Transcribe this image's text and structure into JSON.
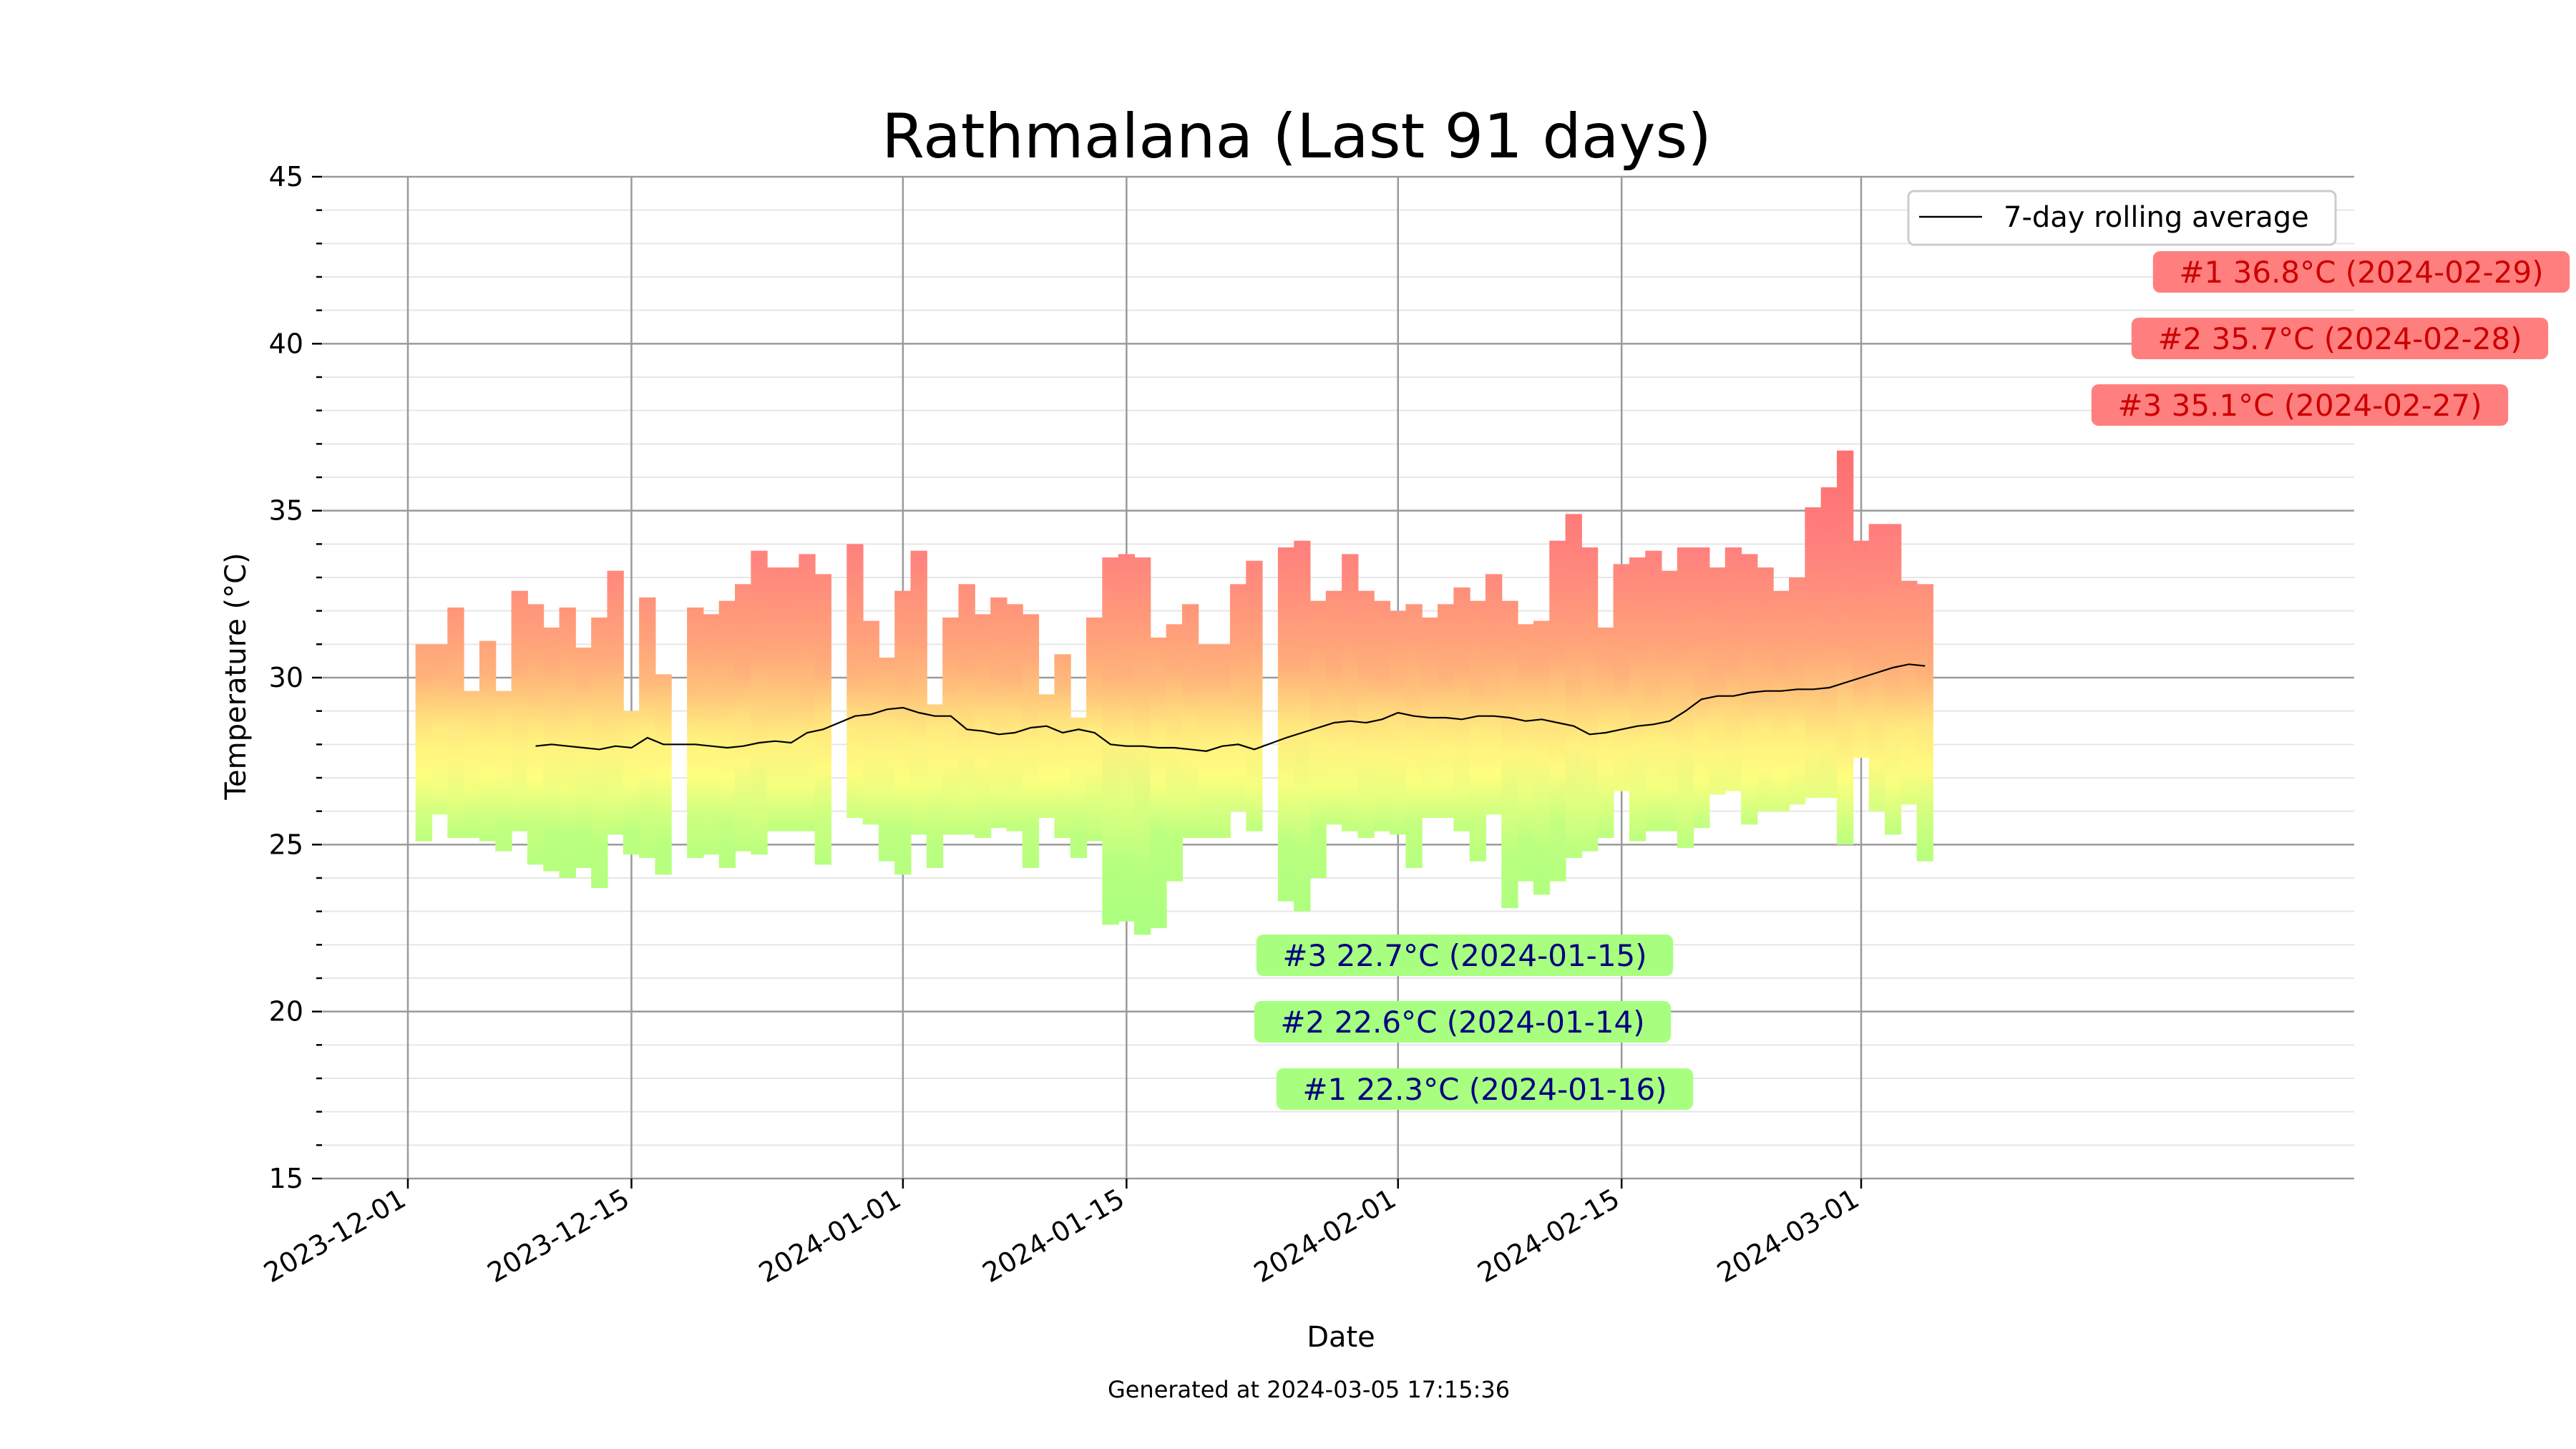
{
  "chart_data": {
    "type": "bar",
    "title": "Rathmalana (Last 91 days)",
    "xlabel": "Date",
    "ylabel": "Temperature (°C)",
    "footer": "Generated at 2024-03-05 17:15:36",
    "ylim": [
      15,
      45
    ],
    "yticks": [
      15,
      20,
      25,
      30,
      35,
      40,
      45
    ],
    "x_range": [
      "2023-12-01",
      "2024-03-08"
    ],
    "x_tick_labels": [
      "2023-12-01",
      "2023-12-15",
      "2024-01-01",
      "2024-01-15",
      "2024-02-01",
      "2024-02-15",
      "2024-03-01"
    ],
    "grid": true,
    "legend": {
      "position": "top-right",
      "label": "7-day rolling average"
    },
    "colors": {
      "hot": "#ff7f7f",
      "warm": "#ffb27a",
      "mild": "#ffff7f",
      "cool": "#a8ff7f",
      "hot_text": "#cc0000",
      "cool_text": "#000080",
      "line": "#000000"
    },
    "daily": [
      {
        "date": "2023-12-02",
        "min": 25.1,
        "max": 31.0
      },
      {
        "date": "2023-12-03",
        "min": 25.9,
        "max": 31.0
      },
      {
        "date": "2023-12-04",
        "min": 25.2,
        "max": 32.1
      },
      {
        "date": "2023-12-05",
        "min": 25.2,
        "max": 29.6
      },
      {
        "date": "2023-12-06",
        "min": 25.1,
        "max": 31.1
      },
      {
        "date": "2023-12-07",
        "min": 24.8,
        "max": 29.6
      },
      {
        "date": "2023-12-08",
        "min": 25.4,
        "max": 32.6
      },
      {
        "date": "2023-12-09",
        "min": 24.4,
        "max": 32.2
      },
      {
        "date": "2023-12-10",
        "min": 24.2,
        "max": 31.5
      },
      {
        "date": "2023-12-11",
        "min": 24.0,
        "max": 32.1
      },
      {
        "date": "2023-12-12",
        "min": 24.3,
        "max": 30.9
      },
      {
        "date": "2023-12-13",
        "min": 23.7,
        "max": 31.8
      },
      {
        "date": "2023-12-14",
        "min": 25.3,
        "max": 33.2
      },
      {
        "date": "2023-12-15",
        "min": 24.7,
        "max": 29.0
      },
      {
        "date": "2023-12-16",
        "min": 24.6,
        "max": 32.4
      },
      {
        "date": "2023-12-17",
        "min": 24.1,
        "max": 30.1
      },
      {
        "date": "2023-12-19",
        "min": 24.6,
        "max": 32.1
      },
      {
        "date": "2023-12-20",
        "min": 24.7,
        "max": 31.9
      },
      {
        "date": "2023-12-21",
        "min": 24.3,
        "max": 32.3
      },
      {
        "date": "2023-12-22",
        "min": 24.8,
        "max": 32.8
      },
      {
        "date": "2023-12-23",
        "min": 24.7,
        "max": 33.8
      },
      {
        "date": "2023-12-24",
        "min": 25.4,
        "max": 33.3
      },
      {
        "date": "2023-12-25",
        "min": 25.4,
        "max": 33.3
      },
      {
        "date": "2023-12-26",
        "min": 25.4,
        "max": 33.7
      },
      {
        "date": "2023-12-27",
        "min": 24.4,
        "max": 33.1
      },
      {
        "date": "2023-12-29",
        "min": 25.8,
        "max": 34.0
      },
      {
        "date": "2023-12-30",
        "min": 25.6,
        "max": 31.7
      },
      {
        "date": "2023-12-31",
        "min": 24.5,
        "max": 30.6
      },
      {
        "date": "2024-01-01",
        "min": 24.1,
        "max": 32.6
      },
      {
        "date": "2024-01-02",
        "min": 25.3,
        "max": 33.8
      },
      {
        "date": "2024-01-03",
        "min": 24.3,
        "max": 29.2
      },
      {
        "date": "2024-01-04",
        "min": 25.3,
        "max": 31.8
      },
      {
        "date": "2024-01-05",
        "min": 25.3,
        "max": 32.8
      },
      {
        "date": "2024-01-06",
        "min": 25.2,
        "max": 31.9
      },
      {
        "date": "2024-01-07",
        "min": 25.5,
        "max": 32.4
      },
      {
        "date": "2024-01-08",
        "min": 25.4,
        "max": 32.2
      },
      {
        "date": "2024-01-09",
        "min": 24.3,
        "max": 31.9
      },
      {
        "date": "2024-01-10",
        "min": 25.8,
        "max": 29.5
      },
      {
        "date": "2024-01-11",
        "min": 25.2,
        "max": 30.7
      },
      {
        "date": "2024-01-12",
        "min": 24.6,
        "max": 28.8
      },
      {
        "date": "2024-01-13",
        "min": 25.1,
        "max": 31.8
      },
      {
        "date": "2024-01-14",
        "min": 22.6,
        "max": 33.6
      },
      {
        "date": "2024-01-15",
        "min": 22.7,
        "max": 33.7
      },
      {
        "date": "2024-01-16",
        "min": 22.3,
        "max": 33.6
      },
      {
        "date": "2024-01-17",
        "min": 22.5,
        "max": 31.2
      },
      {
        "date": "2024-01-18",
        "min": 23.9,
        "max": 31.6
      },
      {
        "date": "2024-01-19",
        "min": 25.2,
        "max": 32.2
      },
      {
        "date": "2024-01-20",
        "min": 25.2,
        "max": 31.0
      },
      {
        "date": "2024-01-21",
        "min": 25.2,
        "max": 31.0
      },
      {
        "date": "2024-01-22",
        "min": 26.0,
        "max": 32.8
      },
      {
        "date": "2024-01-23",
        "min": 25.4,
        "max": 33.5
      },
      {
        "date": "2024-01-25",
        "min": 23.3,
        "max": 33.9
      },
      {
        "date": "2024-01-26",
        "min": 23.0,
        "max": 34.1
      },
      {
        "date": "2024-01-27",
        "min": 24.0,
        "max": 32.3
      },
      {
        "date": "2024-01-28",
        "min": 25.6,
        "max": 32.6
      },
      {
        "date": "2024-01-29",
        "min": 25.4,
        "max": 33.7
      },
      {
        "date": "2024-01-30",
        "min": 25.2,
        "max": 32.6
      },
      {
        "date": "2024-01-31",
        "min": 25.4,
        "max": 32.3
      },
      {
        "date": "2024-02-01",
        "min": 25.3,
        "max": 32.0
      },
      {
        "date": "2024-02-02",
        "min": 24.3,
        "max": 32.2
      },
      {
        "date": "2024-02-03",
        "min": 25.8,
        "max": 31.8
      },
      {
        "date": "2024-02-04",
        "min": 25.8,
        "max": 32.2
      },
      {
        "date": "2024-02-05",
        "min": 25.4,
        "max": 32.7
      },
      {
        "date": "2024-02-06",
        "min": 24.5,
        "max": 32.3
      },
      {
        "date": "2024-02-07",
        "min": 25.9,
        "max": 33.1
      },
      {
        "date": "2024-02-08",
        "min": 23.1,
        "max": 32.3
      },
      {
        "date": "2024-02-09",
        "min": 23.9,
        "max": 31.6
      },
      {
        "date": "2024-02-10",
        "min": 23.5,
        "max": 31.7
      },
      {
        "date": "2024-02-11",
        "min": 23.9,
        "max": 34.1
      },
      {
        "date": "2024-02-12",
        "min": 24.6,
        "max": 34.9
      },
      {
        "date": "2024-02-13",
        "min": 24.8,
        "max": 33.9
      },
      {
        "date": "2024-02-14",
        "min": 25.2,
        "max": 31.5
      },
      {
        "date": "2024-02-15",
        "min": 26.6,
        "max": 33.4
      },
      {
        "date": "2024-02-16",
        "min": 25.1,
        "max": 33.6
      },
      {
        "date": "2024-02-17",
        "min": 25.4,
        "max": 33.8
      },
      {
        "date": "2024-02-18",
        "min": 25.4,
        "max": 33.2
      },
      {
        "date": "2024-02-19",
        "min": 24.9,
        "max": 33.9
      },
      {
        "date": "2024-02-20",
        "min": 25.5,
        "max": 33.9
      },
      {
        "date": "2024-02-21",
        "min": 26.5,
        "max": 33.3
      },
      {
        "date": "2024-02-22",
        "min": 26.6,
        "max": 33.9
      },
      {
        "date": "2024-02-23",
        "min": 25.6,
        "max": 33.7
      },
      {
        "date": "2024-02-24",
        "min": 26.0,
        "max": 33.3
      },
      {
        "date": "2024-02-25",
        "min": 26.0,
        "max": 32.6
      },
      {
        "date": "2024-02-26",
        "min": 26.2,
        "max": 33.0
      },
      {
        "date": "2024-02-27",
        "min": 26.4,
        "max": 35.1
      },
      {
        "date": "2024-02-28",
        "min": 26.4,
        "max": 35.7
      },
      {
        "date": "2024-02-29",
        "min": 25.0,
        "max": 36.8
      },
      {
        "date": "2024-03-01",
        "min": 27.6,
        "max": 34.1
      },
      {
        "date": "2024-03-02",
        "min": 26.0,
        "max": 34.6
      },
      {
        "date": "2024-03-03",
        "min": 25.3,
        "max": 34.6
      },
      {
        "date": "2024-03-04",
        "min": 26.2,
        "max": 32.9
      },
      {
        "date": "2024-03-05",
        "min": 24.5,
        "max": 32.8
      }
    ],
    "rolling_average": {
      "name": "7-day rolling average",
      "dates": [
        "2023-12-09",
        "2023-12-10",
        "2023-12-11",
        "2023-12-12",
        "2023-12-13",
        "2023-12-14",
        "2023-12-15",
        "2023-12-16",
        "2023-12-17",
        "2023-12-19",
        "2023-12-20",
        "2023-12-21",
        "2023-12-22",
        "2023-12-23",
        "2023-12-24",
        "2023-12-25",
        "2023-12-26",
        "2023-12-27",
        "2023-12-29",
        "2023-12-30",
        "2023-12-31",
        "2024-01-01",
        "2024-01-02",
        "2024-01-03",
        "2024-01-04",
        "2024-01-05",
        "2024-01-06",
        "2024-01-07",
        "2024-01-08",
        "2024-01-09",
        "2024-01-10",
        "2024-01-11",
        "2024-01-12",
        "2024-01-13",
        "2024-01-14",
        "2024-01-15",
        "2024-01-16",
        "2024-01-17",
        "2024-01-18",
        "2024-01-19",
        "2024-01-20",
        "2024-01-21",
        "2024-01-22",
        "2024-01-23",
        "2024-01-25",
        "2024-01-26",
        "2024-01-27",
        "2024-01-28",
        "2024-01-29",
        "2024-01-30",
        "2024-01-31",
        "2024-02-01",
        "2024-02-02",
        "2024-02-03",
        "2024-02-04",
        "2024-02-05",
        "2024-02-06",
        "2024-02-07",
        "2024-02-08",
        "2024-02-09",
        "2024-02-10",
        "2024-02-11",
        "2024-02-12",
        "2024-02-13",
        "2024-02-14",
        "2024-02-15",
        "2024-02-16",
        "2024-02-17",
        "2024-02-18",
        "2024-02-19",
        "2024-02-20",
        "2024-02-21",
        "2024-02-22",
        "2024-02-23",
        "2024-02-24",
        "2024-02-25",
        "2024-02-26",
        "2024-02-27",
        "2024-02-28",
        "2024-02-29",
        "2024-03-01",
        "2024-03-02",
        "2024-03-03",
        "2024-03-04",
        "2024-03-05"
      ],
      "values": [
        27.95,
        28.0,
        27.95,
        27.9,
        27.85,
        27.95,
        27.9,
        28.2,
        28.0,
        28.0,
        27.95,
        27.9,
        27.95,
        28.05,
        28.1,
        28.05,
        28.35,
        28.45,
        28.85,
        28.9,
        29.05,
        29.1,
        28.95,
        28.85,
        28.85,
        28.45,
        28.4,
        28.3,
        28.35,
        28.5,
        28.55,
        28.35,
        28.45,
        28.35,
        28.0,
        27.95,
        27.95,
        27.9,
        27.9,
        27.85,
        27.8,
        27.95,
        28.0,
        27.85,
        28.2,
        28.35,
        28.5,
        28.65,
        28.7,
        28.65,
        28.75,
        28.95,
        28.85,
        28.8,
        28.8,
        28.75,
        28.85,
        28.85,
        28.8,
        28.7,
        28.75,
        28.65,
        28.55,
        28.3,
        28.35,
        28.45,
        28.55,
        28.6,
        28.7,
        29.0,
        29.35,
        29.45,
        29.45,
        29.55,
        29.6,
        29.6,
        29.65,
        29.65,
        29.7,
        29.85,
        30.0,
        30.15,
        30.3,
        30.4,
        30.35
      ]
    },
    "annotations": [
      {
        "label": "#1 36.8°C (2024-02-29)",
        "kind": "hot",
        "anchor": "2024-02-29"
      },
      {
        "label": "#2 35.7°C (2024-02-28)",
        "kind": "hot",
        "anchor": "2024-02-28"
      },
      {
        "label": "#3 35.1°C (2024-02-27)",
        "kind": "hot",
        "anchor": "2024-02-27"
      },
      {
        "label": "#3 22.7°C (2024-01-15)",
        "kind": "cool",
        "anchor": "2024-01-15"
      },
      {
        "label": "#2 22.6°C (2024-01-14)",
        "kind": "cool",
        "anchor": "2024-01-14"
      },
      {
        "label": "#1 22.3°C (2024-01-16)",
        "kind": "cool",
        "anchor": "2024-01-16"
      }
    ]
  }
}
